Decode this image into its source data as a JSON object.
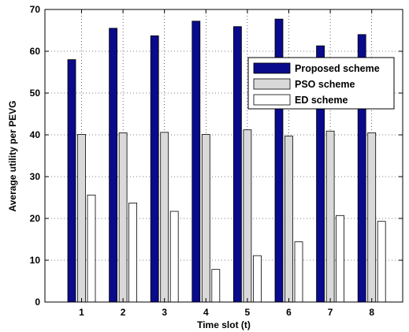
{
  "chart_data": {
    "type": "bar",
    "title": "",
    "xlabel": "Time slot (t)",
    "ylabel": "Average utility per PEVG",
    "categories": [
      "1",
      "2",
      "3",
      "4",
      "5",
      "6",
      "7",
      "8"
    ],
    "ylim": [
      0,
      70
    ],
    "yticks": [
      "0",
      "10",
      "20",
      "30",
      "40",
      "50",
      "60",
      "70"
    ],
    "grid": true,
    "legend_position": "top-right",
    "series": [
      {
        "name": "Proposed scheme",
        "color": "#0a0a8c",
        "values": [
          58,
          65.5,
          63.7,
          67.2,
          65.9,
          67.7,
          61.3,
          64
        ]
      },
      {
        "name": "PSO scheme",
        "color": "#d9d9d9",
        "values": [
          40.1,
          40.5,
          40.6,
          40.1,
          41.2,
          39.7,
          40.9,
          40.5
        ]
      },
      {
        "name": "ED scheme",
        "color": "#ffffff",
        "values": [
          25.6,
          23.7,
          21.7,
          7.8,
          11.1,
          14.4,
          20.7,
          19.3
        ]
      }
    ]
  }
}
